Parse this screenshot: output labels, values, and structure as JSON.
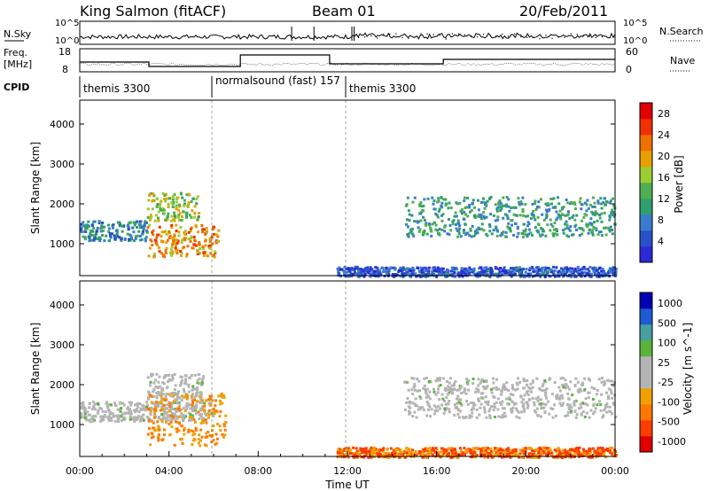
{
  "header": {
    "station": "King Salmon (fitACF)",
    "beam": "Beam 01",
    "date": "20/Feb/2011"
  },
  "noise_panel": {
    "left_label": "N.Sky",
    "right_label": "N.Search",
    "ticks": [
      "10^5",
      "10^0"
    ]
  },
  "freq_panel": {
    "left_label_1": "Freq.",
    "left_label_2": "[MHz]",
    "left_ticks": [
      "18",
      "8"
    ],
    "right_ticks": [
      "60",
      "0"
    ],
    "right_label": "Nave"
  },
  "cpid_panel": {
    "label": "CPID",
    "segments": [
      "themis 3300",
      "normalsound (fast) 157",
      "themis 3300"
    ]
  },
  "colors": {
    "power_scale": [
      "#2a2ad8",
      "#2850c8",
      "#3a7bd0",
      "#2f9f6f",
      "#4fae4f",
      "#9acd32",
      "#e8a000",
      "#f07000",
      "#f03000",
      "#e00000"
    ],
    "velocity_scale": [
      "#0000b4",
      "#1e5ad2",
      "#46a0a0",
      "#5ab43c",
      "#b4b4b4",
      "#b4b4b4",
      "#f0a000",
      "#ff7800",
      "#ff3c00",
      "#e00000"
    ],
    "ground_scatter": "#b4b4b4"
  },
  "chart_data": [
    {
      "type": "heatmap",
      "name": "power",
      "ylabel": "Slant Range [km]",
      "yticks": [
        1000,
        2000,
        3000,
        4000
      ],
      "ylim": [
        200,
        4600
      ],
      "xlim": [
        0,
        24
      ],
      "colorbar": {
        "label": "Power [dB]",
        "ticks": [
          4,
          8,
          12,
          16,
          20,
          24,
          28
        ],
        "range": [
          0,
          30
        ]
      },
      "scatter_regions": [
        {
          "t0": 0.0,
          "t1": 3.0,
          "r0": 1100,
          "r1": 1600,
          "level_db": 8
        },
        {
          "t0": 3.0,
          "t1": 6.2,
          "r0": 700,
          "r1": 1500,
          "level_db": 22
        },
        {
          "t0": 3.0,
          "t1": 5.3,
          "r0": 1600,
          "r1": 2300,
          "level_db": 16
        },
        {
          "t0": 14.5,
          "t1": 24.0,
          "r0": 1200,
          "r1": 2200,
          "level_db": 10
        },
        {
          "t0": 11.5,
          "t1": 24.0,
          "r0": 200,
          "r1": 450,
          "level_db": 4
        }
      ]
    },
    {
      "type": "heatmap",
      "name": "velocity",
      "ylabel": "Slant Range [km]",
      "xlabel": "Time UT",
      "xticks": [
        "00:00",
        "04:00",
        "08:00",
        "12:00",
        "16:00",
        "20:00",
        "00:00"
      ],
      "yticks": [
        1000,
        2000,
        3000,
        4000
      ],
      "ylim": [
        200,
        4600
      ],
      "xlim": [
        0,
        24
      ],
      "colorbar": {
        "label": "Velocity [m s^-1]",
        "ticks": [
          1000,
          500,
          100,
          25,
          -25,
          -100,
          -500,
          -1000
        ]
      },
      "scatter_regions": [
        {
          "t0": 0.0,
          "t1": 6.0,
          "r0": 1100,
          "r1": 1600,
          "velocity": 0
        },
        {
          "t0": 3.0,
          "t1": 5.5,
          "r0": 1600,
          "r1": 2300,
          "velocity": 0
        },
        {
          "t0": 3.0,
          "t1": 6.5,
          "r0": 500,
          "r1": 1800,
          "velocity": -150
        },
        {
          "t0": 14.5,
          "t1": 24.0,
          "r0": 1200,
          "r1": 2200,
          "velocity": 0
        },
        {
          "t0": 11.5,
          "t1": 24.0,
          "r0": 200,
          "r1": 450,
          "velocity": -60
        }
      ]
    }
  ]
}
